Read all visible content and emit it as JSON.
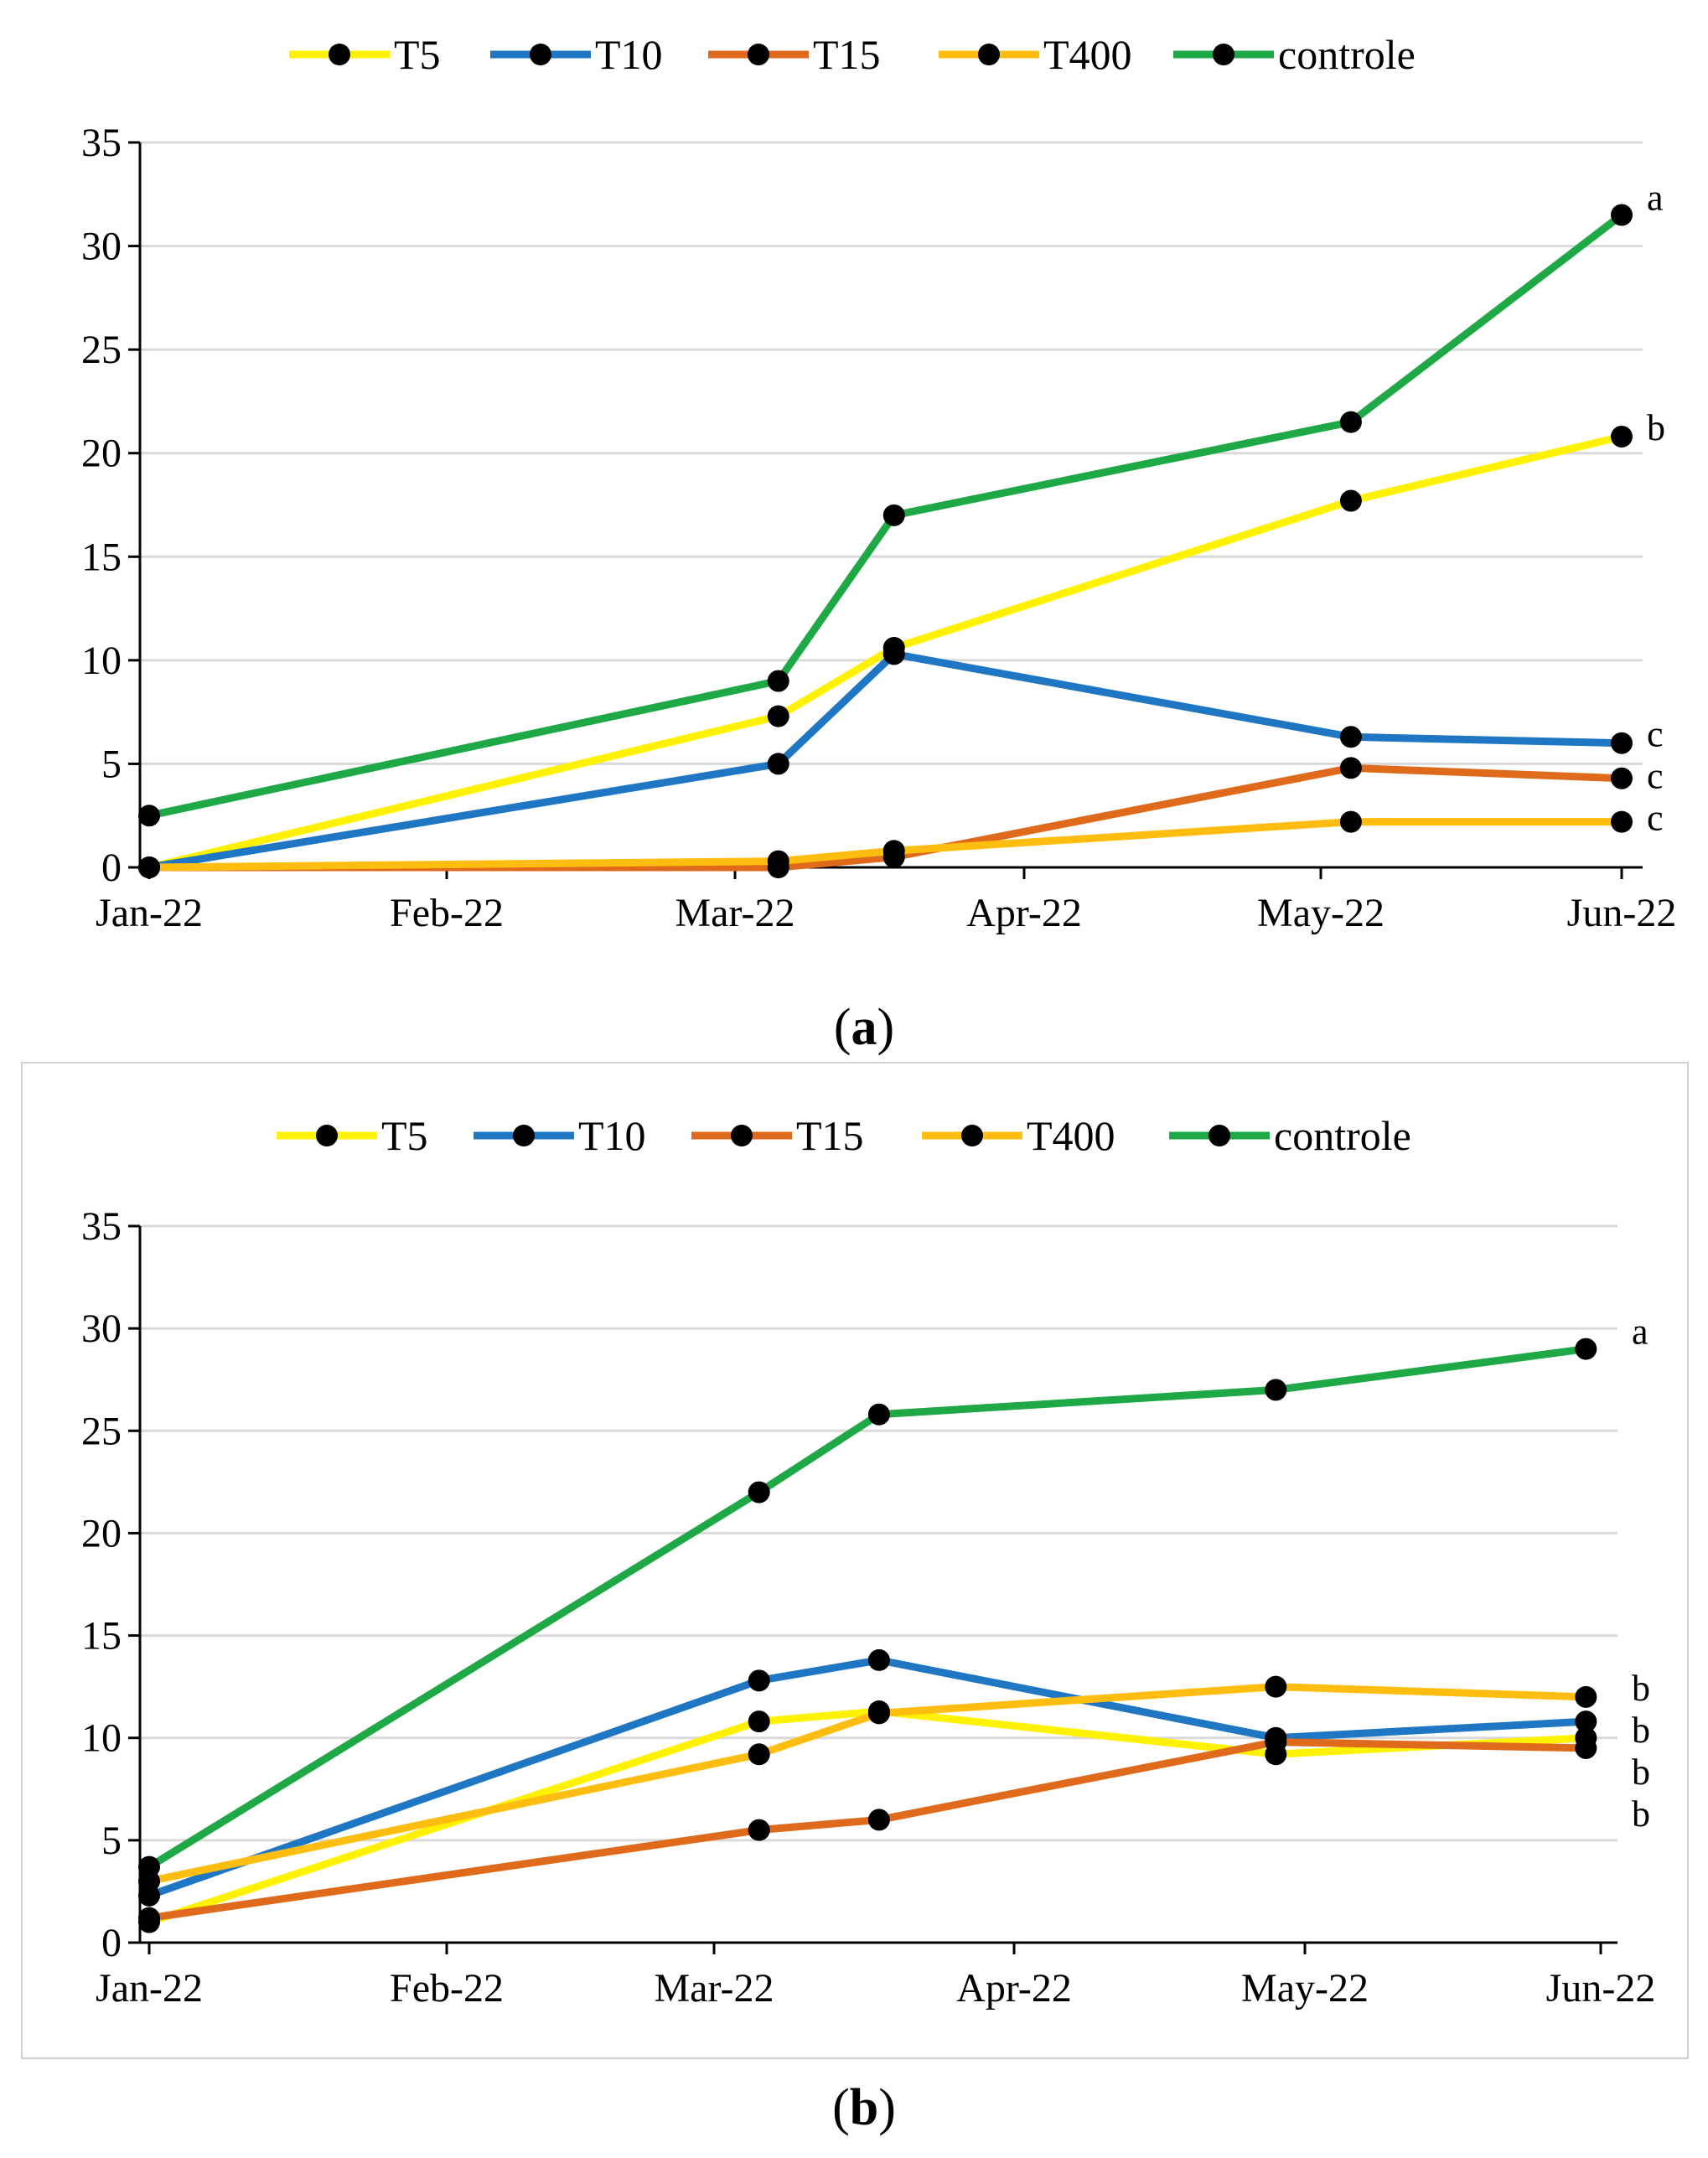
{
  "chart_data": [
    {
      "type": "line",
      "panel": "a",
      "caption_letter": "a",
      "x": [
        "Jan-22",
        "Mar-22",
        "Mar-22b",
        "May-22",
        "Jun-22"
      ],
      "x_months": [
        0,
        2.15,
        2.55,
        4.1,
        5.05
      ],
      "xticks": [
        "Jan-22",
        "Feb-22",
        "Mar-22",
        "Apr-22",
        "May-22",
        "Jun-22"
      ],
      "ylim": [
        0,
        35
      ],
      "yticks": [
        0,
        5,
        10,
        15,
        20,
        25,
        30,
        35
      ],
      "grid": true,
      "legend_position": "top",
      "series": [
        {
          "name": "T5",
          "color": "#FFF200",
          "values": [
            0,
            7.3,
            10.6,
            17.7,
            20.8
          ],
          "letter": "b"
        },
        {
          "name": "T10",
          "color": "#1F77C4",
          "values": [
            0,
            5.0,
            10.3,
            6.3,
            6.0
          ],
          "letter": "c"
        },
        {
          "name": "T15",
          "color": "#E06A1B",
          "values": [
            0,
            0,
            0.5,
            4.8,
            4.3
          ],
          "letter": "c"
        },
        {
          "name": "T400",
          "color": "#FFBE0F",
          "values": [
            0,
            0.3,
            0.8,
            2.2,
            2.2
          ],
          "letter": "c"
        },
        {
          "name": "controle",
          "color": "#1FA846",
          "values": [
            2.5,
            9.0,
            17.0,
            21.5,
            31.5
          ],
          "letter": "a"
        }
      ]
    },
    {
      "type": "line",
      "panel": "b",
      "caption_letter": "b",
      "x": [
        "Jan-22",
        "Mar-22",
        "Mar-22b",
        "May-22",
        "Jun-22"
      ],
      "x_months": [
        0,
        2.15,
        2.55,
        3.9,
        4.95
      ],
      "xticks": [
        "Jan-22",
        "Feb-22",
        "Mar-22",
        "Apr-22",
        "May-22",
        "Jun-22"
      ],
      "ylim": [
        0,
        35
      ],
      "yticks": [
        0,
        5,
        10,
        15,
        20,
        25,
        30,
        35
      ],
      "grid": true,
      "legend_position": "top",
      "series": [
        {
          "name": "T5",
          "color": "#FFF200",
          "values": [
            1.0,
            10.8,
            11.3,
            9.2,
            10.0
          ],
          "letter": "b"
        },
        {
          "name": "T10",
          "color": "#1F77C4",
          "values": [
            2.3,
            12.8,
            13.8,
            10.0,
            10.8
          ],
          "letter": "b"
        },
        {
          "name": "T15",
          "color": "#E06A1B",
          "values": [
            1.2,
            5.5,
            6.0,
            9.8,
            9.5
          ],
          "letter": "b"
        },
        {
          "name": "T400",
          "color": "#FFBE0F",
          "values": [
            3.0,
            9.2,
            11.2,
            12.5,
            12.0
          ],
          "letter": "b"
        },
        {
          "name": "controle",
          "color": "#1FA846",
          "values": [
            3.7,
            22.0,
            25.8,
            27.0,
            29.0
          ],
          "letter": "a"
        }
      ]
    }
  ]
}
